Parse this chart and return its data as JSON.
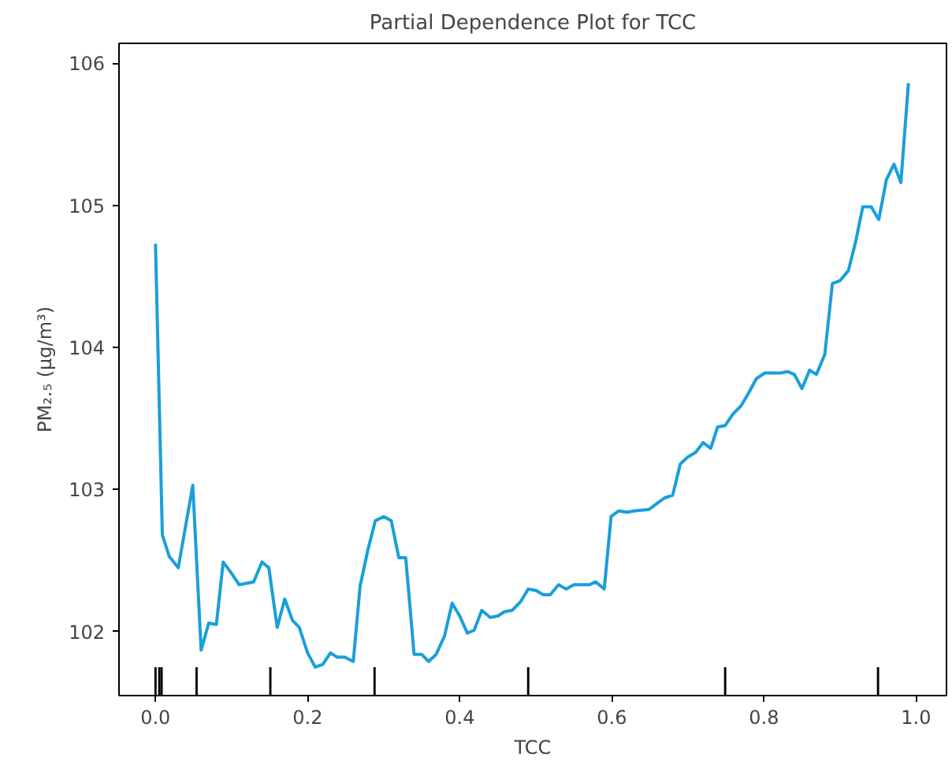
{
  "chart_data": {
    "type": "line",
    "title": "Partial Dependence Plot for TCC",
    "xlabel": "TCC",
    "ylabel": "PM₂.₅ (µg/m³)",
    "x": [
      0.0,
      0.009,
      0.018,
      0.03,
      0.049,
      0.06,
      0.07,
      0.08,
      0.089,
      0.1,
      0.11,
      0.129,
      0.14,
      0.149,
      0.16,
      0.17,
      0.18,
      0.189,
      0.2,
      0.21,
      0.22,
      0.23,
      0.239,
      0.249,
      0.26,
      0.269,
      0.279,
      0.289,
      0.3,
      0.31,
      0.32,
      0.329,
      0.34,
      0.35,
      0.359,
      0.369,
      0.38,
      0.39,
      0.4,
      0.41,
      0.419,
      0.429,
      0.44,
      0.45,
      0.459,
      0.469,
      0.48,
      0.49,
      0.5,
      0.51,
      0.519,
      0.53,
      0.54,
      0.55,
      0.57,
      0.579,
      0.59,
      0.599,
      0.609,
      0.62,
      0.63,
      0.649,
      0.659,
      0.669,
      0.68,
      0.69,
      0.7,
      0.71,
      0.72,
      0.73,
      0.739,
      0.749,
      0.759,
      0.77,
      0.78,
      0.79,
      0.801,
      0.822,
      0.831,
      0.84,
      0.85,
      0.86,
      0.869,
      0.88,
      0.89,
      0.9,
      0.911,
      0.92,
      0.93,
      0.941,
      0.951,
      0.961,
      0.971,
      0.98,
      0.99
    ],
    "series": [
      {
        "color": "#1a9fd8",
        "values": [
          104.73,
          102.68,
          102.53,
          102.45,
          103.03,
          101.87,
          102.06,
          102.05,
          102.49,
          102.41,
          102.33,
          102.35,
          102.49,
          102.45,
          102.03,
          102.23,
          102.08,
          102.03,
          101.85,
          101.75,
          101.77,
          101.85,
          101.82,
          101.82,
          101.79,
          102.32,
          102.57,
          102.78,
          102.81,
          102.78,
          102.52,
          102.52,
          101.84,
          101.84,
          101.79,
          101.84,
          101.97,
          102.2,
          102.11,
          101.99,
          102.01,
          102.15,
          102.1,
          102.11,
          102.14,
          102.15,
          102.21,
          102.3,
          102.29,
          102.26,
          102.26,
          102.33,
          102.3,
          102.33,
          102.33,
          102.35,
          102.3,
          102.81,
          102.85,
          102.84,
          102.85,
          102.86,
          102.9,
          102.94,
          102.96,
          103.18,
          103.23,
          103.26,
          103.33,
          103.29,
          103.44,
          103.45,
          103.53,
          103.59,
          103.68,
          103.78,
          103.82,
          103.82,
          103.83,
          103.81,
          103.71,
          103.84,
          103.81,
          103.95,
          104.45,
          104.47,
          104.54,
          104.73,
          104.99,
          104.99,
          104.9,
          105.18,
          105.29,
          105.16,
          105.86
        ]
      },
      {
        "type": "bar",
        "color": "#000000",
        "x": [
          0.0,
          0.005,
          0.008,
          0.054,
          0.151,
          0.288,
          0.49,
          0.749,
          0.95
        ],
        "base": [
          101.55,
          101.55,
          101.55,
          101.55,
          101.55,
          101.55,
          101.55,
          101.55,
          101.55
        ],
        "values": [
          0.2,
          0.2,
          0.2,
          0.2,
          0.2,
          0.2,
          0.2,
          0.2,
          0.2
        ]
      }
    ],
    "xlim": [
      -0.048,
      1.04
    ],
    "ylim": [
      101.55,
      106.14
    ],
    "xticks": [
      {
        "value": 0,
        "label": "0.0"
      },
      0.2,
      0.4,
      0.6,
      0.8,
      {
        "value": 1,
        "label": "1.0"
      }
    ],
    "yticks": [
      102,
      103,
      104,
      105,
      106
    ],
    "grid": false
  }
}
